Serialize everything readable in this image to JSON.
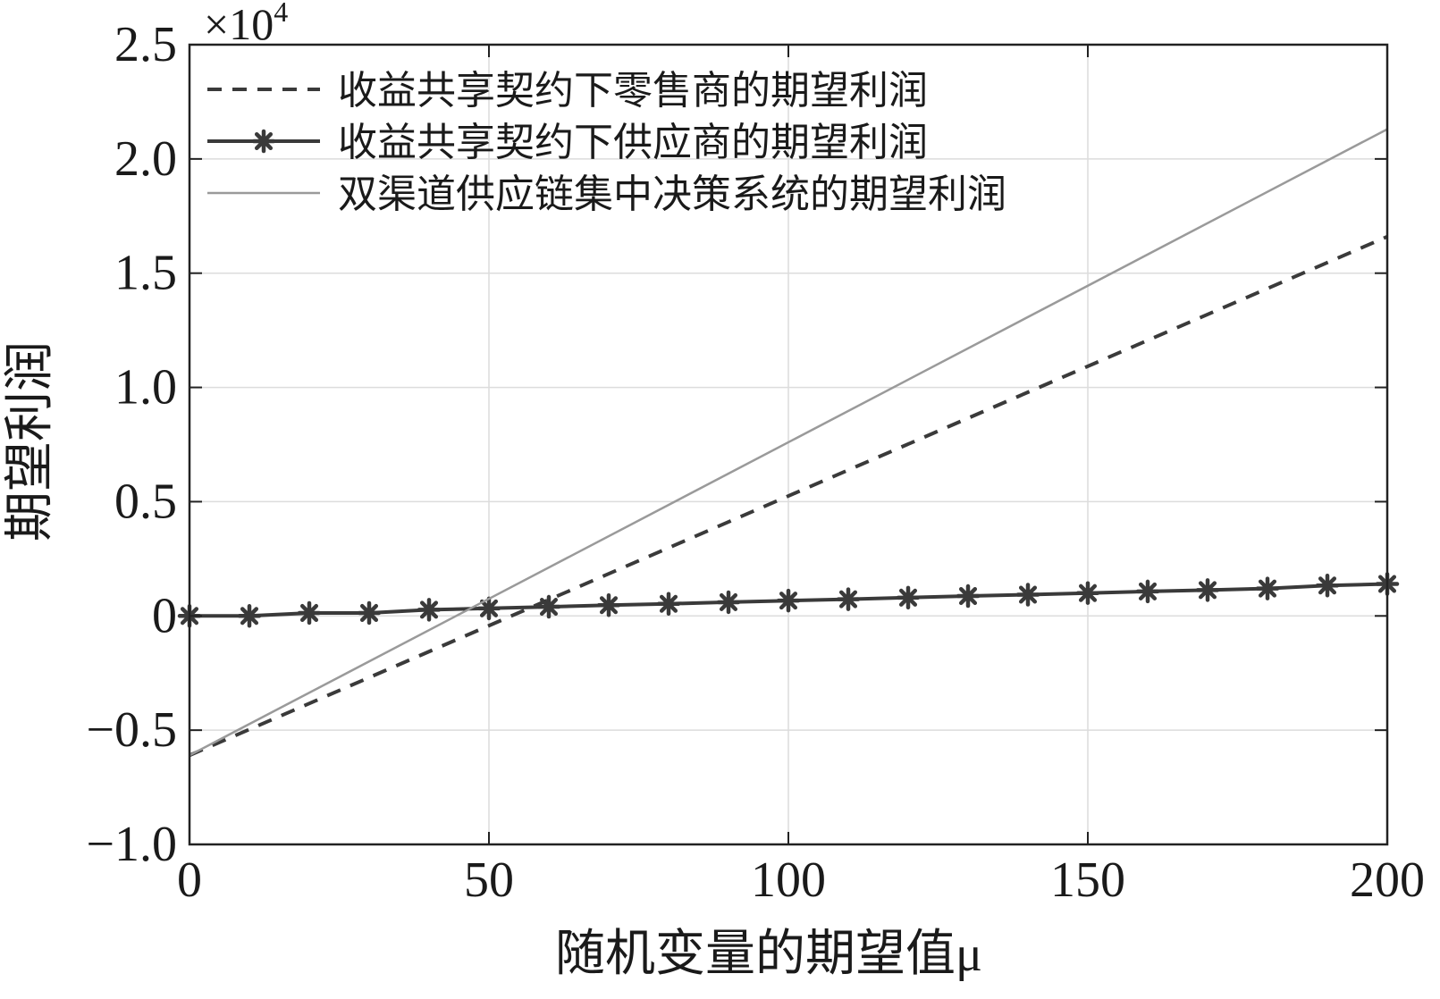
{
  "chart_data": {
    "type": "line",
    "title": "",
    "xlabel": "随机变量的期望值μ",
    "ylabel": "期望利润",
    "y_scale_exponent": "×10^4",
    "y_scale_prefix": "×10",
    "y_scale_power": "4",
    "xlim": [
      0,
      200
    ],
    "ylim": [
      -1.0,
      2.5
    ],
    "x_ticks": [
      0,
      50,
      100,
      150,
      200
    ],
    "y_ticks": [
      -1.0,
      -0.5,
      0,
      0.5,
      1.0,
      1.5,
      2.0,
      2.5
    ],
    "x_tick_labels": [
      "0",
      "50",
      "100",
      "150",
      "200"
    ],
    "y_tick_labels": [
      "−1.0",
      "−0.5",
      "0",
      "0.5",
      "1.0",
      "1.5",
      "2.0",
      "2.5"
    ],
    "grid": true,
    "legend_position": "top-left",
    "series": [
      {
        "name": "收益共享契约下零售商的期望利润",
        "style": "dashed",
        "color": "#3a3a3a",
        "x": [
          0,
          200
        ],
        "y": [
          -0.61,
          1.66
        ]
      },
      {
        "name": "收益共享契约下供应商的期望利润",
        "style": "solid-star",
        "color": "#3a3a3a",
        "x": [
          0,
          10,
          20,
          30,
          40,
          50,
          60,
          70,
          80,
          90,
          100,
          110,
          120,
          130,
          140,
          150,
          160,
          170,
          180,
          190,
          200
        ],
        "y": [
          0.0,
          0.0,
          0.013,
          0.013,
          0.027,
          0.033,
          0.04,
          0.047,
          0.053,
          0.06,
          0.067,
          0.073,
          0.08,
          0.087,
          0.093,
          0.1,
          0.107,
          0.113,
          0.12,
          0.133,
          0.14
        ]
      },
      {
        "name": "双渠道供应链集中决策系统的期望利润",
        "style": "solid",
        "color": "#9a9a9a",
        "x": [
          0,
          200
        ],
        "y": [
          -0.61,
          2.13
        ]
      }
    ]
  }
}
